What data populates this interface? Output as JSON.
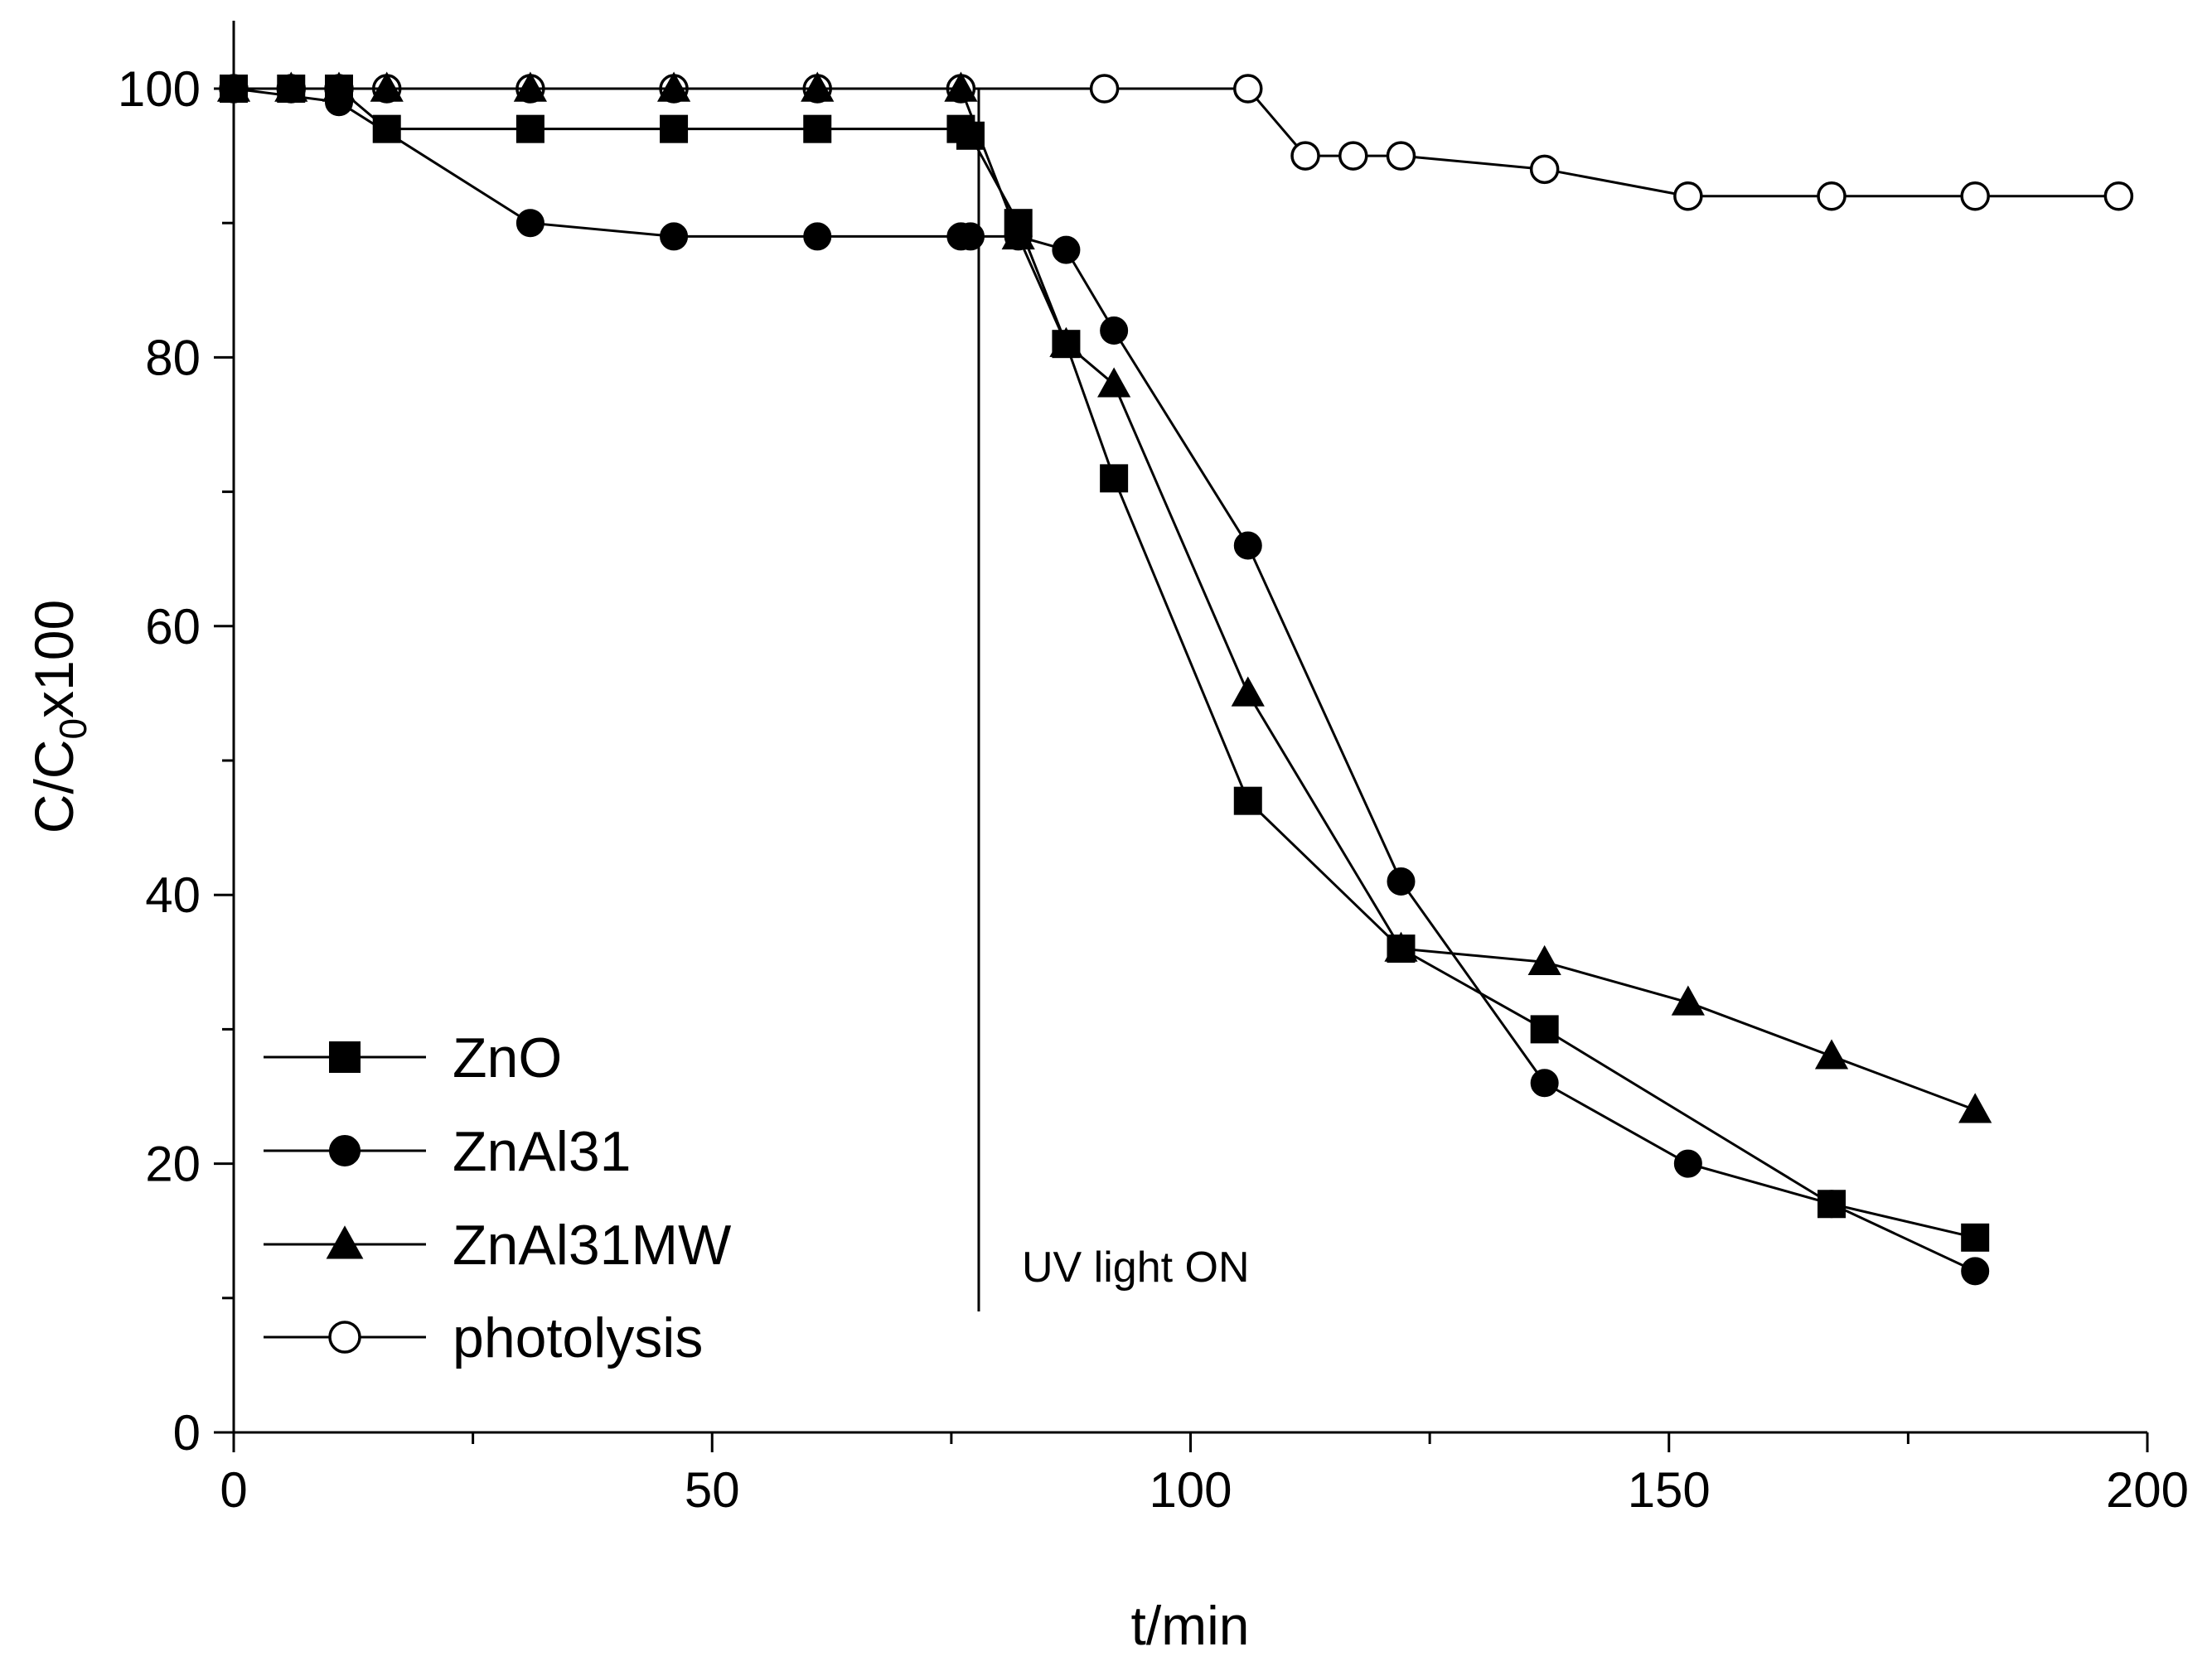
{
  "chart_data": {
    "type": "line",
    "title": "",
    "xlabel": "t/min",
    "ylabel": {
      "main": "C/C",
      "subscript": "0",
      "suffix": "x100"
    },
    "xlim": [
      0,
      200
    ],
    "ylim": [
      0,
      100
    ],
    "x_ticks": [
      "0",
      "50",
      "100",
      "150",
      "200"
    ],
    "y_ticks": [
      "0",
      "20",
      "40",
      "60",
      "80",
      "100"
    ],
    "grid": false,
    "legend_position": "bottom-left",
    "annotation": {
      "text": "UV light ON",
      "x": 77,
      "y_from": 9,
      "y_to": 100
    },
    "series": [
      {
        "name": "ZnO",
        "marker": "square-filled",
        "x": [
          0,
          6,
          11,
          16,
          31,
          46,
          61,
          76,
          77,
          82,
          87,
          92,
          106,
          122,
          137,
          167,
          182
        ],
        "y": [
          100,
          100,
          100,
          97,
          97,
          97,
          97,
          97,
          96.5,
          90,
          81,
          71,
          47,
          36,
          30,
          17,
          14.5
        ]
      },
      {
        "name": "ZnAl31",
        "marker": "circle-filled",
        "x": [
          0,
          11,
          31,
          46,
          61,
          76,
          77,
          82,
          87,
          92,
          106,
          122,
          137,
          152,
          167,
          182
        ],
        "y": [
          100,
          99,
          90,
          89,
          89,
          89,
          89,
          89,
          88,
          82,
          66,
          41,
          26,
          20,
          17,
          12
        ]
      },
      {
        "name": "ZnAl31MW",
        "marker": "triangle-filled",
        "x": [
          0,
          6,
          11,
          16,
          31,
          46,
          61,
          76,
          82,
          87,
          92,
          106,
          122,
          137,
          152,
          167,
          182
        ],
        "y": [
          100,
          100,
          100,
          100,
          100,
          100,
          100,
          100,
          89,
          81,
          78,
          55,
          36,
          35,
          32,
          28,
          24
        ]
      },
      {
        "name": "photolysis",
        "marker": "circle-open",
        "x": [
          0,
          6,
          11,
          16,
          31,
          46,
          61,
          76,
          91,
          106,
          112,
          117,
          122,
          137,
          152,
          167,
          182,
          197
        ],
        "y": [
          100,
          100,
          100,
          100,
          100,
          100,
          100,
          100,
          100,
          100,
          95,
          95,
          95,
          94,
          92,
          92,
          92,
          92
        ]
      }
    ]
  }
}
